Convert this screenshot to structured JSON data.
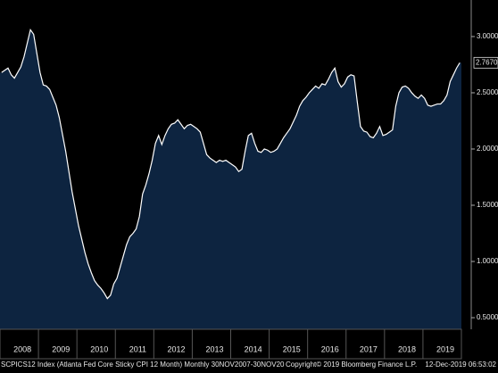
{
  "chart_data": {
    "type": "area",
    "color": "#0d2440",
    "line_color": "#ffffff",
    "categories": [
      null,
      null,
      null,
      null,
      null,
      null,
      "2008",
      null,
      null,
      null,
      null,
      null,
      null,
      null,
      null,
      null,
      null,
      null,
      "2009",
      null,
      null,
      null,
      null,
      null,
      null,
      null,
      null,
      null,
      null,
      null,
      "2010",
      null,
      null,
      null,
      null,
      null,
      null,
      null,
      null,
      null,
      null,
      null,
      "2011",
      null,
      null,
      null,
      null,
      null,
      null,
      null,
      null,
      null,
      null,
      null,
      "2012",
      null,
      null,
      null,
      null,
      null,
      null,
      null,
      null,
      null,
      null,
      null,
      "2013",
      null,
      null,
      null,
      null,
      null,
      null,
      null,
      null,
      null,
      null,
      null,
      "2014",
      null,
      null,
      null,
      null,
      null,
      null,
      null,
      null,
      null,
      null,
      null,
      "2015",
      null,
      null,
      null,
      null,
      null,
      null,
      null,
      null,
      null,
      null,
      null,
      "2016",
      null,
      null,
      null,
      null,
      null,
      null,
      null,
      null,
      null,
      null,
      null,
      "2017",
      null,
      null,
      null,
      null,
      null,
      null,
      null,
      null,
      null,
      null,
      null,
      "2018",
      null,
      null,
      null,
      null,
      null,
      null,
      null,
      null,
      null,
      null,
      null,
      "2019",
      null,
      null,
      null,
      null,
      null
    ],
    "values": [
      2.68,
      2.7,
      2.72,
      2.66,
      2.63,
      2.68,
      2.73,
      2.82,
      2.94,
      3.06,
      3.02,
      2.85,
      2.68,
      2.57,
      2.56,
      2.53,
      2.46,
      2.39,
      2.28,
      2.13,
      1.98,
      1.8,
      1.62,
      1.47,
      1.32,
      1.2,
      1.08,
      0.98,
      0.9,
      0.83,
      0.79,
      0.76,
      0.72,
      0.67,
      0.7,
      0.8,
      0.85,
      0.95,
      1.05,
      1.15,
      1.22,
      1.25,
      1.29,
      1.4,
      1.6,
      1.68,
      1.78,
      1.9,
      2.05,
      2.12,
      2.04,
      2.12,
      2.18,
      2.22,
      2.23,
      2.26,
      2.22,
      2.18,
      2.21,
      2.22,
      2.2,
      2.18,
      2.15,
      2.05,
      1.95,
      1.92,
      1.9,
      1.88,
      1.9,
      1.89,
      1.9,
      1.88,
      1.86,
      1.84,
      1.8,
      1.82,
      1.98,
      2.12,
      2.14,
      2.05,
      1.98,
      1.97,
      2.0,
      1.99,
      1.97,
      1.98,
      2.0,
      2.05,
      2.1,
      2.14,
      2.18,
      2.24,
      2.3,
      2.38,
      2.43,
      2.46,
      2.5,
      2.53,
      2.56,
      2.54,
      2.58,
      2.57,
      2.62,
      2.68,
      2.72,
      2.6,
      2.55,
      2.58,
      2.64,
      2.66,
      2.65,
      2.42,
      2.2,
      2.16,
      2.15,
      2.11,
      2.1,
      2.14,
      2.2,
      2.12,
      2.13,
      2.15,
      2.17,
      2.38,
      2.5,
      2.55,
      2.56,
      2.54,
      2.5,
      2.47,
      2.45,
      2.48,
      2.45,
      2.39,
      2.38,
      2.39,
      2.4,
      2.4,
      2.43,
      2.48,
      2.6,
      2.66,
      2.72,
      2.767
    ],
    "value_labels": [
      null,
      null,
      null,
      null,
      null,
      null,
      null,
      null,
      null,
      null,
      null,
      null,
      null,
      null,
      null,
      null,
      null,
      null,
      null,
      null,
      null,
      null,
      null,
      null,
      null,
      null,
      null,
      null,
      null,
      null,
      null,
      null,
      null,
      null,
      null,
      null,
      null,
      null,
      null,
      null,
      null,
      null,
      null,
      null,
      null,
      null,
      null,
      null,
      null,
      null,
      null,
      null,
      null,
      null,
      null,
      null,
      null,
      null,
      null,
      null,
      null,
      null,
      null,
      null,
      null,
      null,
      null,
      null,
      null,
      null,
      null,
      null,
      null,
      null,
      null,
      null,
      null,
      null,
      null,
      null,
      null,
      null,
      null,
      null,
      null,
      null,
      null,
      null,
      null,
      null,
      null,
      null,
      null,
      null,
      null,
      null,
      null,
      null,
      null,
      null,
      null,
      null,
      null,
      null,
      null,
      null,
      null,
      null,
      null,
      null,
      null,
      null,
      null,
      null,
      null,
      null,
      null,
      null,
      null,
      null,
      null,
      null,
      null,
      null,
      null,
      null,
      null,
      null,
      null,
      null,
      null,
      null,
      null,
      null,
      null,
      null,
      null,
      null,
      null,
      null,
      null,
      null,
      null,
      "2.7670"
    ],
    "ylim": [
      0.397,
      3.325
    ],
    "yticks": [
      {
        "value": 0.5,
        "label": "0.5000"
      },
      {
        "value": 1,
        "label": "1.0000"
      },
      {
        "value": 1.5,
        "label": "1.5000"
      },
      {
        "value": 2,
        "label": "2.0000"
      },
      {
        "value": 2.5,
        "label": "2.5000"
      },
      {
        "value": 3,
        "label": "3.0000"
      }
    ],
    "grid": false,
    "footnotes": [
      "SCPICS12 Index (Atlanta Fed Core Sticky CPI 12 Month)  Monthly 30NOV2007-30NOV20",
      "Copyright© 2019 Bloomberg Finance L.P.",
      "12-Dec-2019 06:53:02"
    ]
  }
}
